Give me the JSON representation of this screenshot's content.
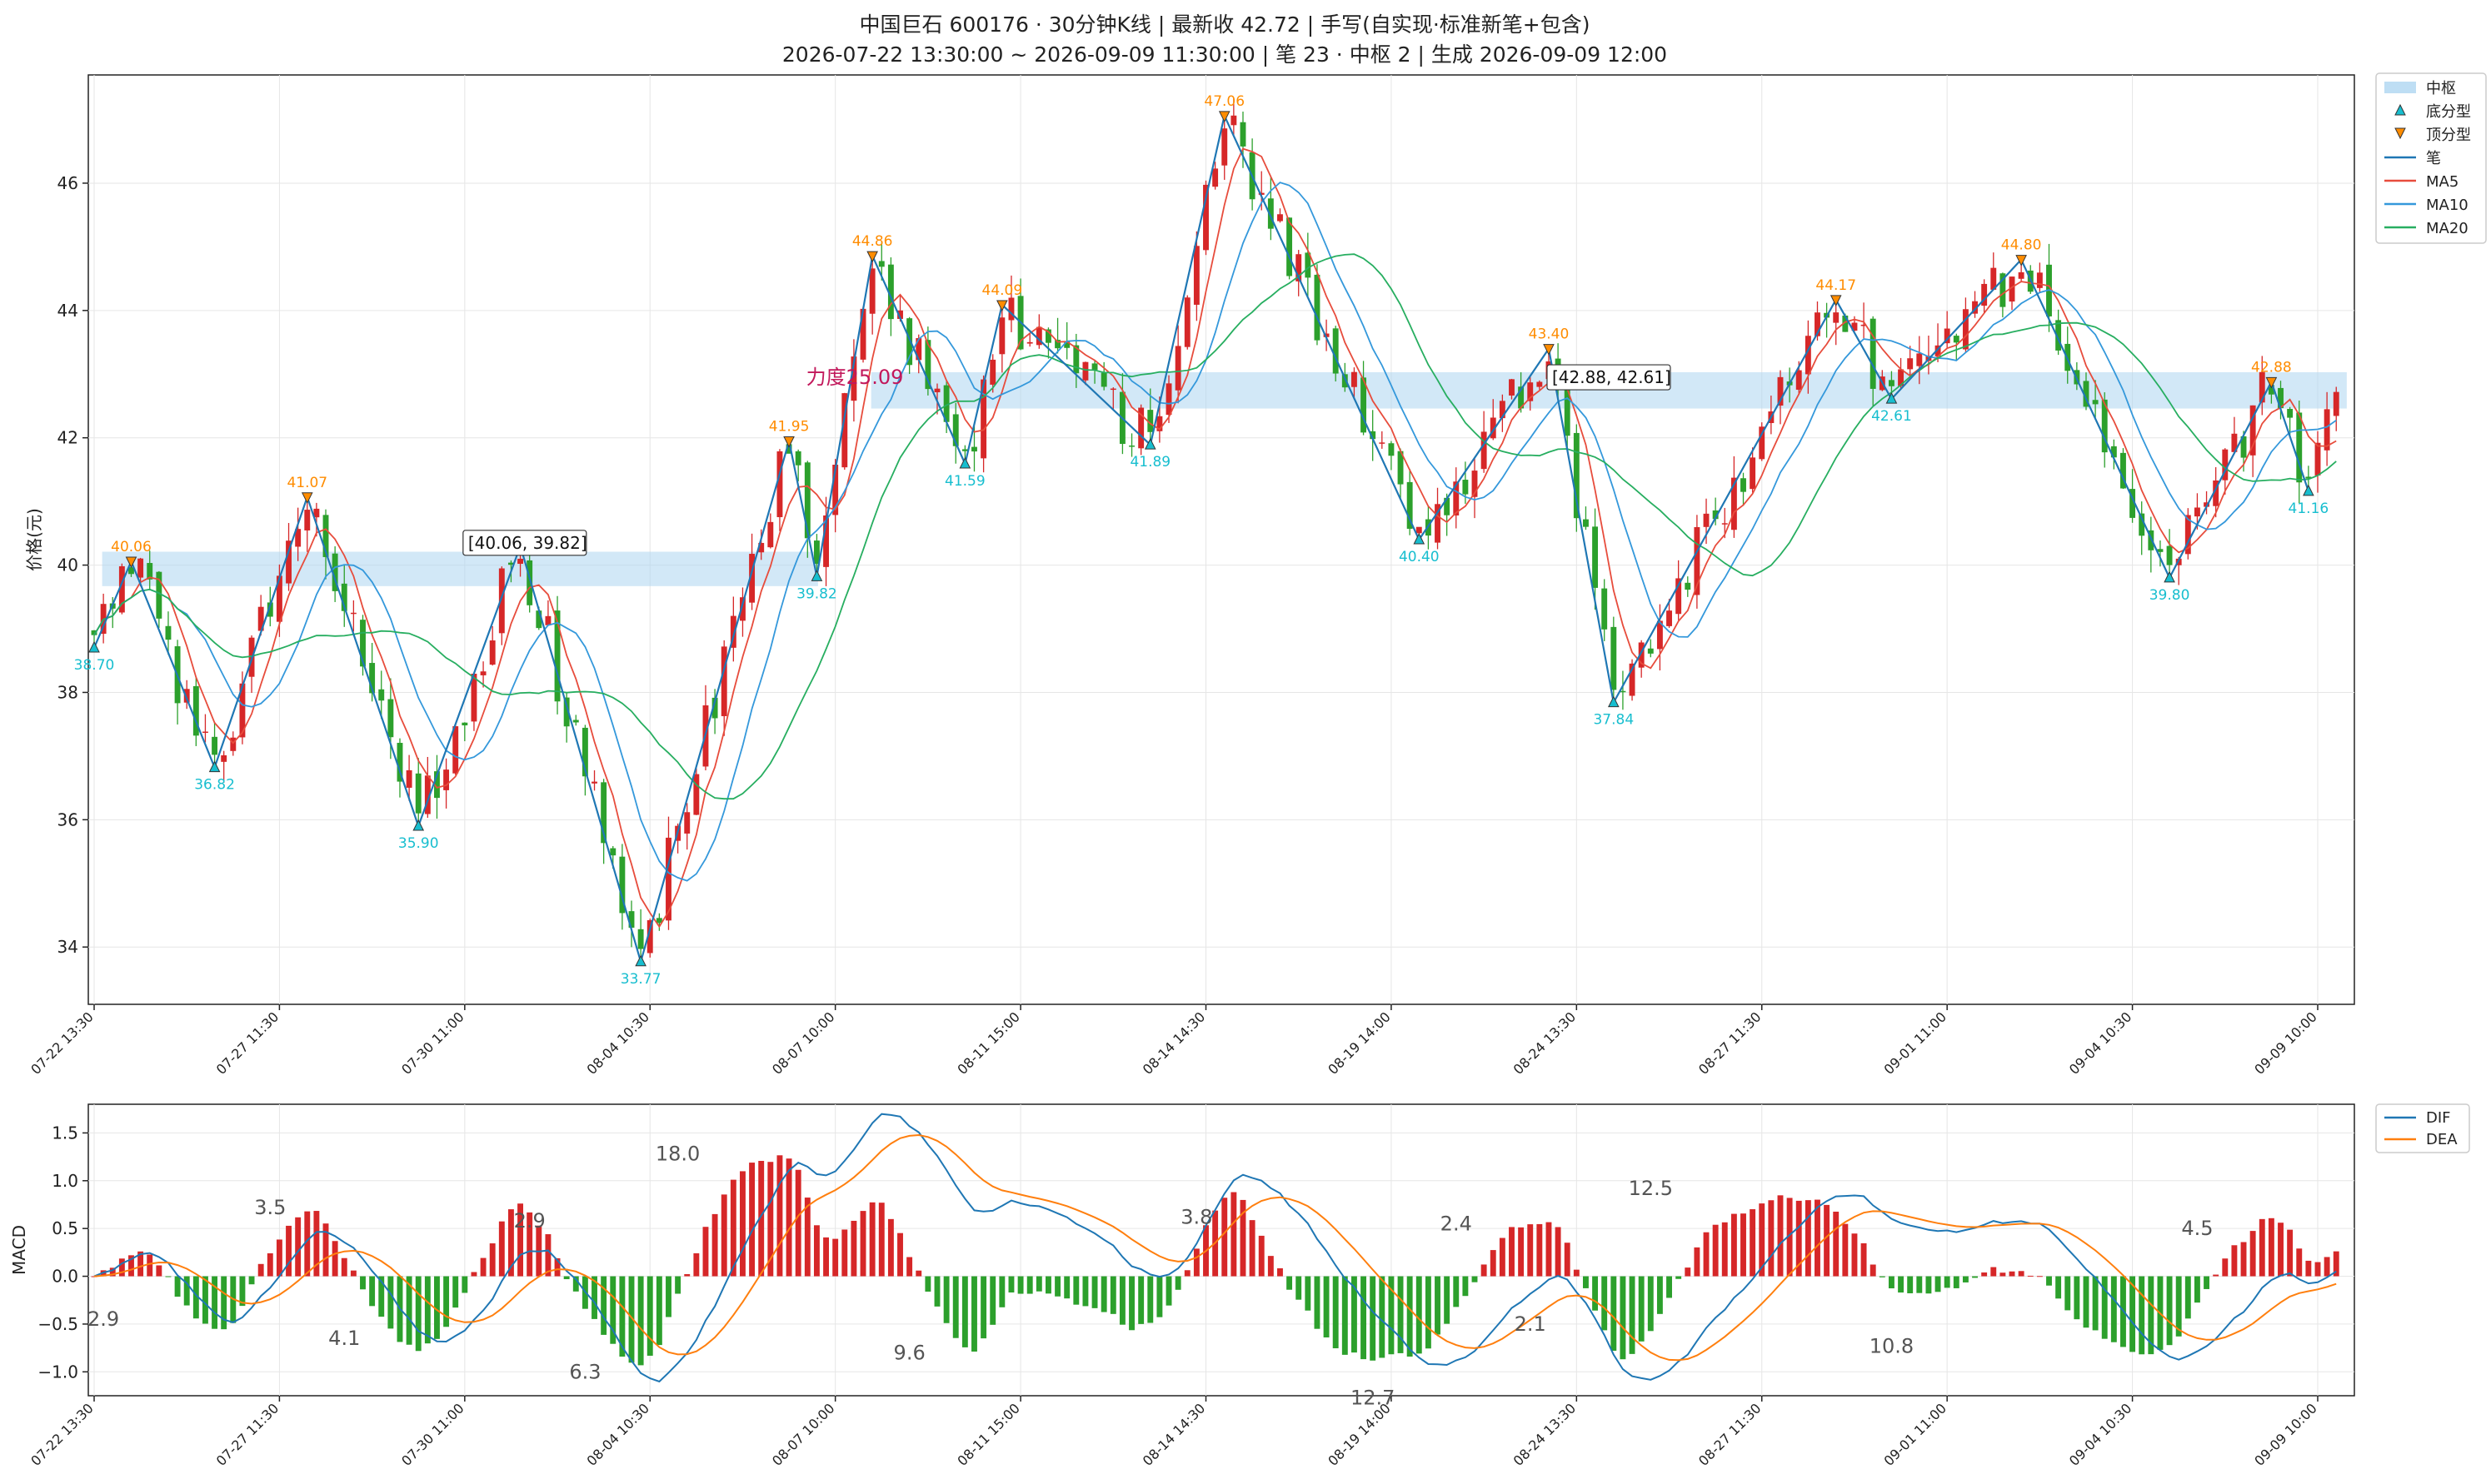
{
  "title_line1": "中国巨石 600176 · 30分钟K线 | 最新收 42.72 | 手写(自实现·标准新笔+包含)",
  "title_line2": "2026-07-22 13:30:00 ~ 2026-09-09 11:30:00 | 笔 23 · 中枢 2 | 生成 2026-09-09 12:00",
  "legend": {
    "zhongshu": "中枢",
    "bottom": "底分型",
    "top": "顶分型",
    "bi": "笔",
    "ma5": "MA5",
    "ma10": "MA10",
    "ma20": "MA20",
    "dif": "DIF",
    "dea": "DEA"
  },
  "colors": {
    "up": "#d62728",
    "down": "#2ca02c",
    "bi": "#1f77b4",
    "ma5": "#e74c3c",
    "ma10": "#3498db",
    "ma20": "#27ae60",
    "zhongshu": "#aed6f1",
    "dif": "#1f77b4",
    "dea": "#ff7f0e",
    "low_label": "#17becf",
    "high_label": "#ff8c00"
  },
  "chart_data": [
    {
      "type": "candlestick",
      "ylabel": "价格(元)",
      "ylim": [
        33.1,
        47.7
      ],
      "yticks": [
        34,
        36,
        38,
        40,
        42,
        44,
        46
      ],
      "xtick_labels": [
        "07-22 13:30",
        "07-27 11:30",
        "07-30 11:00",
        "08-04 10:30",
        "08-07 10:00",
        "08-11 15:00",
        "08-14 14:30",
        "08-19 14:00",
        "08-24 13:30",
        "08-27 11:30",
        "09-01 11:00",
        "09-04 10:30",
        "09-09 10:00"
      ],
      "xtick_index": [
        0,
        20,
        40,
        60,
        80,
        100,
        120,
        140,
        160,
        180,
        200,
        220,
        240
      ],
      "bar_count": 243,
      "bi_points": [
        {
          "i": 0,
          "v": 38.7,
          "kind": "bottom",
          "label": "38.70"
        },
        {
          "i": 4,
          "v": 40.06,
          "kind": "top",
          "label": "40.06"
        },
        {
          "i": 13,
          "v": 36.82,
          "kind": "bottom",
          "label": "36.82"
        },
        {
          "i": 23,
          "v": 41.07,
          "kind": "top",
          "label": "41.07"
        },
        {
          "i": 35,
          "v": 35.9,
          "kind": "bottom",
          "label": "35.90"
        },
        {
          "i": 46,
          "v": 40.3,
          "kind": "top",
          "label": ""
        },
        {
          "i": 59,
          "v": 33.77,
          "kind": "bottom",
          "label": "33.77"
        },
        {
          "i": 75,
          "v": 41.95,
          "kind": "top",
          "label": "41.95"
        },
        {
          "i": 78,
          "v": 39.82,
          "kind": "bottom",
          "label": "39.82"
        },
        {
          "i": 84,
          "v": 44.86,
          "kind": "top",
          "label": "44.86"
        },
        {
          "i": 94,
          "v": 41.59,
          "kind": "bottom",
          "label": "41.59"
        },
        {
          "i": 98,
          "v": 44.09,
          "kind": "top",
          "label": "44.09"
        },
        {
          "i": 114,
          "v": 41.89,
          "kind": "bottom",
          "label": "41.89"
        },
        {
          "i": 122,
          "v": 47.06,
          "kind": "top",
          "label": "47.06"
        },
        {
          "i": 143,
          "v": 40.4,
          "kind": "bottom",
          "label": "40.40"
        },
        {
          "i": 157,
          "v": 43.4,
          "kind": "top",
          "label": "43.40"
        },
        {
          "i": 164,
          "v": 37.84,
          "kind": "bottom",
          "label": "37.84"
        },
        {
          "i": 188,
          "v": 44.17,
          "kind": "top",
          "label": "44.17"
        },
        {
          "i": 194,
          "v": 42.61,
          "kind": "bottom",
          "label": "42.61"
        },
        {
          "i": 208,
          "v": 44.8,
          "kind": "top",
          "label": "44.80"
        },
        {
          "i": 224,
          "v": 39.8,
          "kind": "bottom",
          "label": "39.80"
        },
        {
          "i": 235,
          "v": 42.88,
          "kind": "top",
          "label": "42.88"
        },
        {
          "i": 239,
          "v": 41.16,
          "kind": "bottom",
          "label": "41.16"
        }
      ],
      "zhongshu": [
        {
          "i0": 1,
          "i1": 78,
          "low": 39.82,
          "high": 40.06,
          "label": "[40.06, 39.82]"
        },
        {
          "i0": 84,
          "i1": 243,
          "low": 42.61,
          "high": 42.88,
          "label": "[42.88, 42.61]"
        }
      ],
      "force_label": "力度25.09",
      "last_close": 42.72
    },
    {
      "type": "bar+line",
      "ylabel": "MACD",
      "ylim": [
        -1.25,
        1.8
      ],
      "yticks": [
        -1.0,
        -0.5,
        0.0,
        0.5,
        1.0,
        1.5
      ],
      "ytick_labels": [
        "−1.0",
        "−0.5",
        "0.0",
        "0.5",
        "1.0",
        "1.5"
      ],
      "series": [
        {
          "name": "DIF"
        },
        {
          "name": "DEA"
        }
      ],
      "area_annotations": [
        {
          "i": 1,
          "v": -0.45,
          "text": "2.9"
        },
        {
          "i": 19,
          "v": 0.72,
          "text": "3.5"
        },
        {
          "i": 27,
          "v": -0.65,
          "text": "4.1"
        },
        {
          "i": 47,
          "v": 0.58,
          "text": "2.9"
        },
        {
          "i": 53,
          "v": -1.0,
          "text": "6.3"
        },
        {
          "i": 63,
          "v": 1.28,
          "text": "18.0"
        },
        {
          "i": 88,
          "v": -0.8,
          "text": "9.6"
        },
        {
          "i": 119,
          "v": 0.62,
          "text": "3.8"
        },
        {
          "i": 138,
          "v": -1.27,
          "text": "12.7"
        },
        {
          "i": 147,
          "v": 0.55,
          "text": "2.4"
        },
        {
          "i": 155,
          "v": -0.5,
          "text": "2.1"
        },
        {
          "i": 168,
          "v": 0.92,
          "text": "12.5"
        },
        {
          "i": 194,
          "v": -0.73,
          "text": "10.8"
        },
        {
          "i": 227,
          "v": 0.5,
          "text": "4.5"
        }
      ]
    }
  ]
}
